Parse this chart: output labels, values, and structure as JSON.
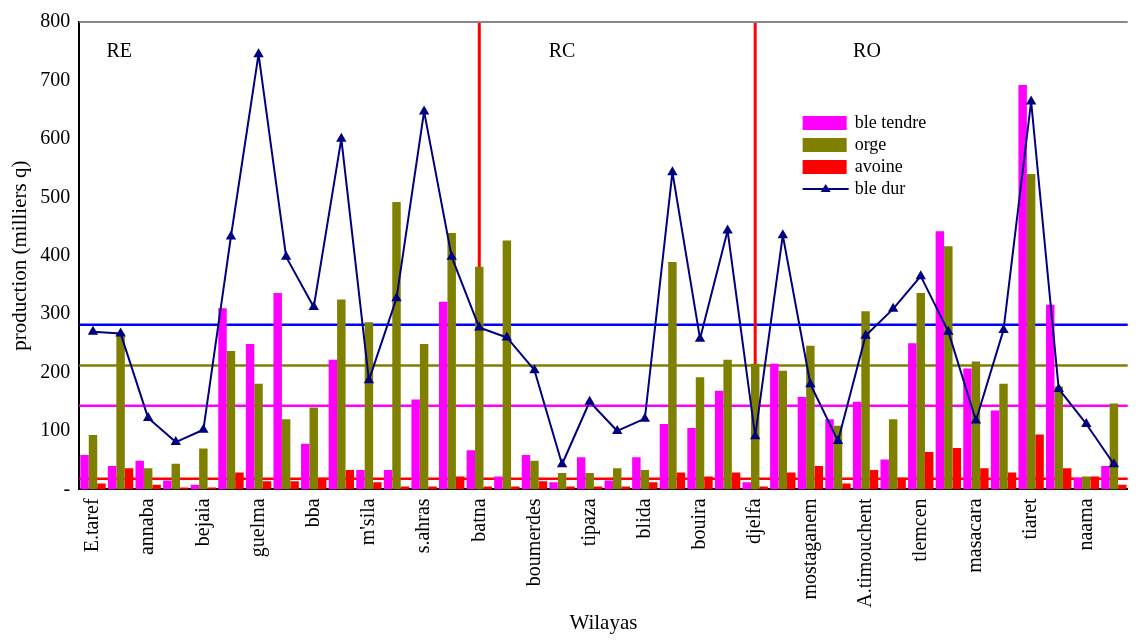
{
  "chart_data": {
    "type": "bar",
    "xlabel": "Wilayas",
    "ylabel": "production (milliers q)",
    "categories": [
      "E.taref",
      null,
      "annaba",
      null,
      "bejaia",
      null,
      "guelma",
      null,
      "bba",
      null,
      "m'sila",
      null,
      "s.ahras",
      null,
      "batna",
      null,
      "boumerdes",
      null,
      "tipaza",
      null,
      "blida",
      null,
      "bouira",
      null,
      "djelfa",
      null,
      "mostaganem",
      null,
      "A.timouchent",
      null,
      "tlemcen",
      null,
      "masacara",
      null,
      "tiaret",
      null,
      "naama",
      null
    ],
    "series": [
      {
        "name": "ble tendre",
        "color": "#ff00ff",
        "values": [
          59,
          40,
          49,
          15,
          8,
          310,
          249,
          336,
          78,
          222,
          33,
          33,
          154,
          321,
          67,
          22,
          59,
          12,
          55,
          15,
          55,
          112,
          105,
          169,
          12,
          215,
          158,
          120,
          150,
          51,
          250,
          442,
          207,
          135,
          692,
          316,
          20,
          40
        ]
      },
      {
        "name": "orge",
        "color": "#808000",
        "values": [
          93,
          267,
          36,
          44,
          70,
          237,
          181,
          120,
          140,
          325,
          286,
          492,
          249,
          439,
          381,
          426,
          49,
          28,
          28,
          36,
          33,
          389,
          192,
          222,
          215,
          203,
          246,
          109,
          305,
          120,
          336,
          416,
          219,
          181,
          540,
          176,
          22,
          147
        ]
      },
      {
        "name": "avoine",
        "color": "#ff0000",
        "values": [
          10,
          36,
          8,
          3,
          3,
          29,
          14,
          14,
          20,
          33,
          12,
          5,
          5,
          22,
          5,
          5,
          14,
          5,
          5,
          5,
          12,
          29,
          22,
          29,
          5,
          29,
          40,
          10,
          33,
          20,
          64,
          71,
          36,
          29,
          94,
          36,
          22,
          8
        ]
      },
      {
        "name": "ble dur",
        "type": "line",
        "color": "#000080",
        "marker": "triangle",
        "values": [
          270,
          267,
          122,
          81,
          102,
          433,
          745,
          398,
          312,
          600,
          187,
          327,
          647,
          398,
          277,
          260,
          204,
          43,
          150,
          100,
          121,
          543,
          258,
          443,
          91,
          435,
          180,
          83,
          263,
          309,
          365,
          270,
          118,
          273,
          664,
          172,
          112,
          43
        ]
      }
    ],
    "ylim": [
      0,
      800
    ],
    "yticks": [
      {
        "value": 0,
        "label": "-"
      },
      100,
      200,
      300,
      400,
      500,
      600,
      700,
      800
    ],
    "ref_lines": [
      {
        "axis": "y",
        "value": 282,
        "color": "#0000ff"
      },
      {
        "axis": "y",
        "value": 212,
        "color": "#808000"
      },
      {
        "axis": "y",
        "value": 143,
        "color": "#ff00ff"
      },
      {
        "axis": "y",
        "value": 18,
        "color": "#ff0000"
      },
      {
        "axis": "x",
        "value": "batna",
        "color": "#ff0000"
      },
      {
        "axis": "x",
        "value": "djelfa",
        "color": "#ff0000"
      }
    ],
    "annotations": [
      "RE",
      "RC",
      "RO"
    ],
    "legend": "top right",
    "grid": false
  }
}
